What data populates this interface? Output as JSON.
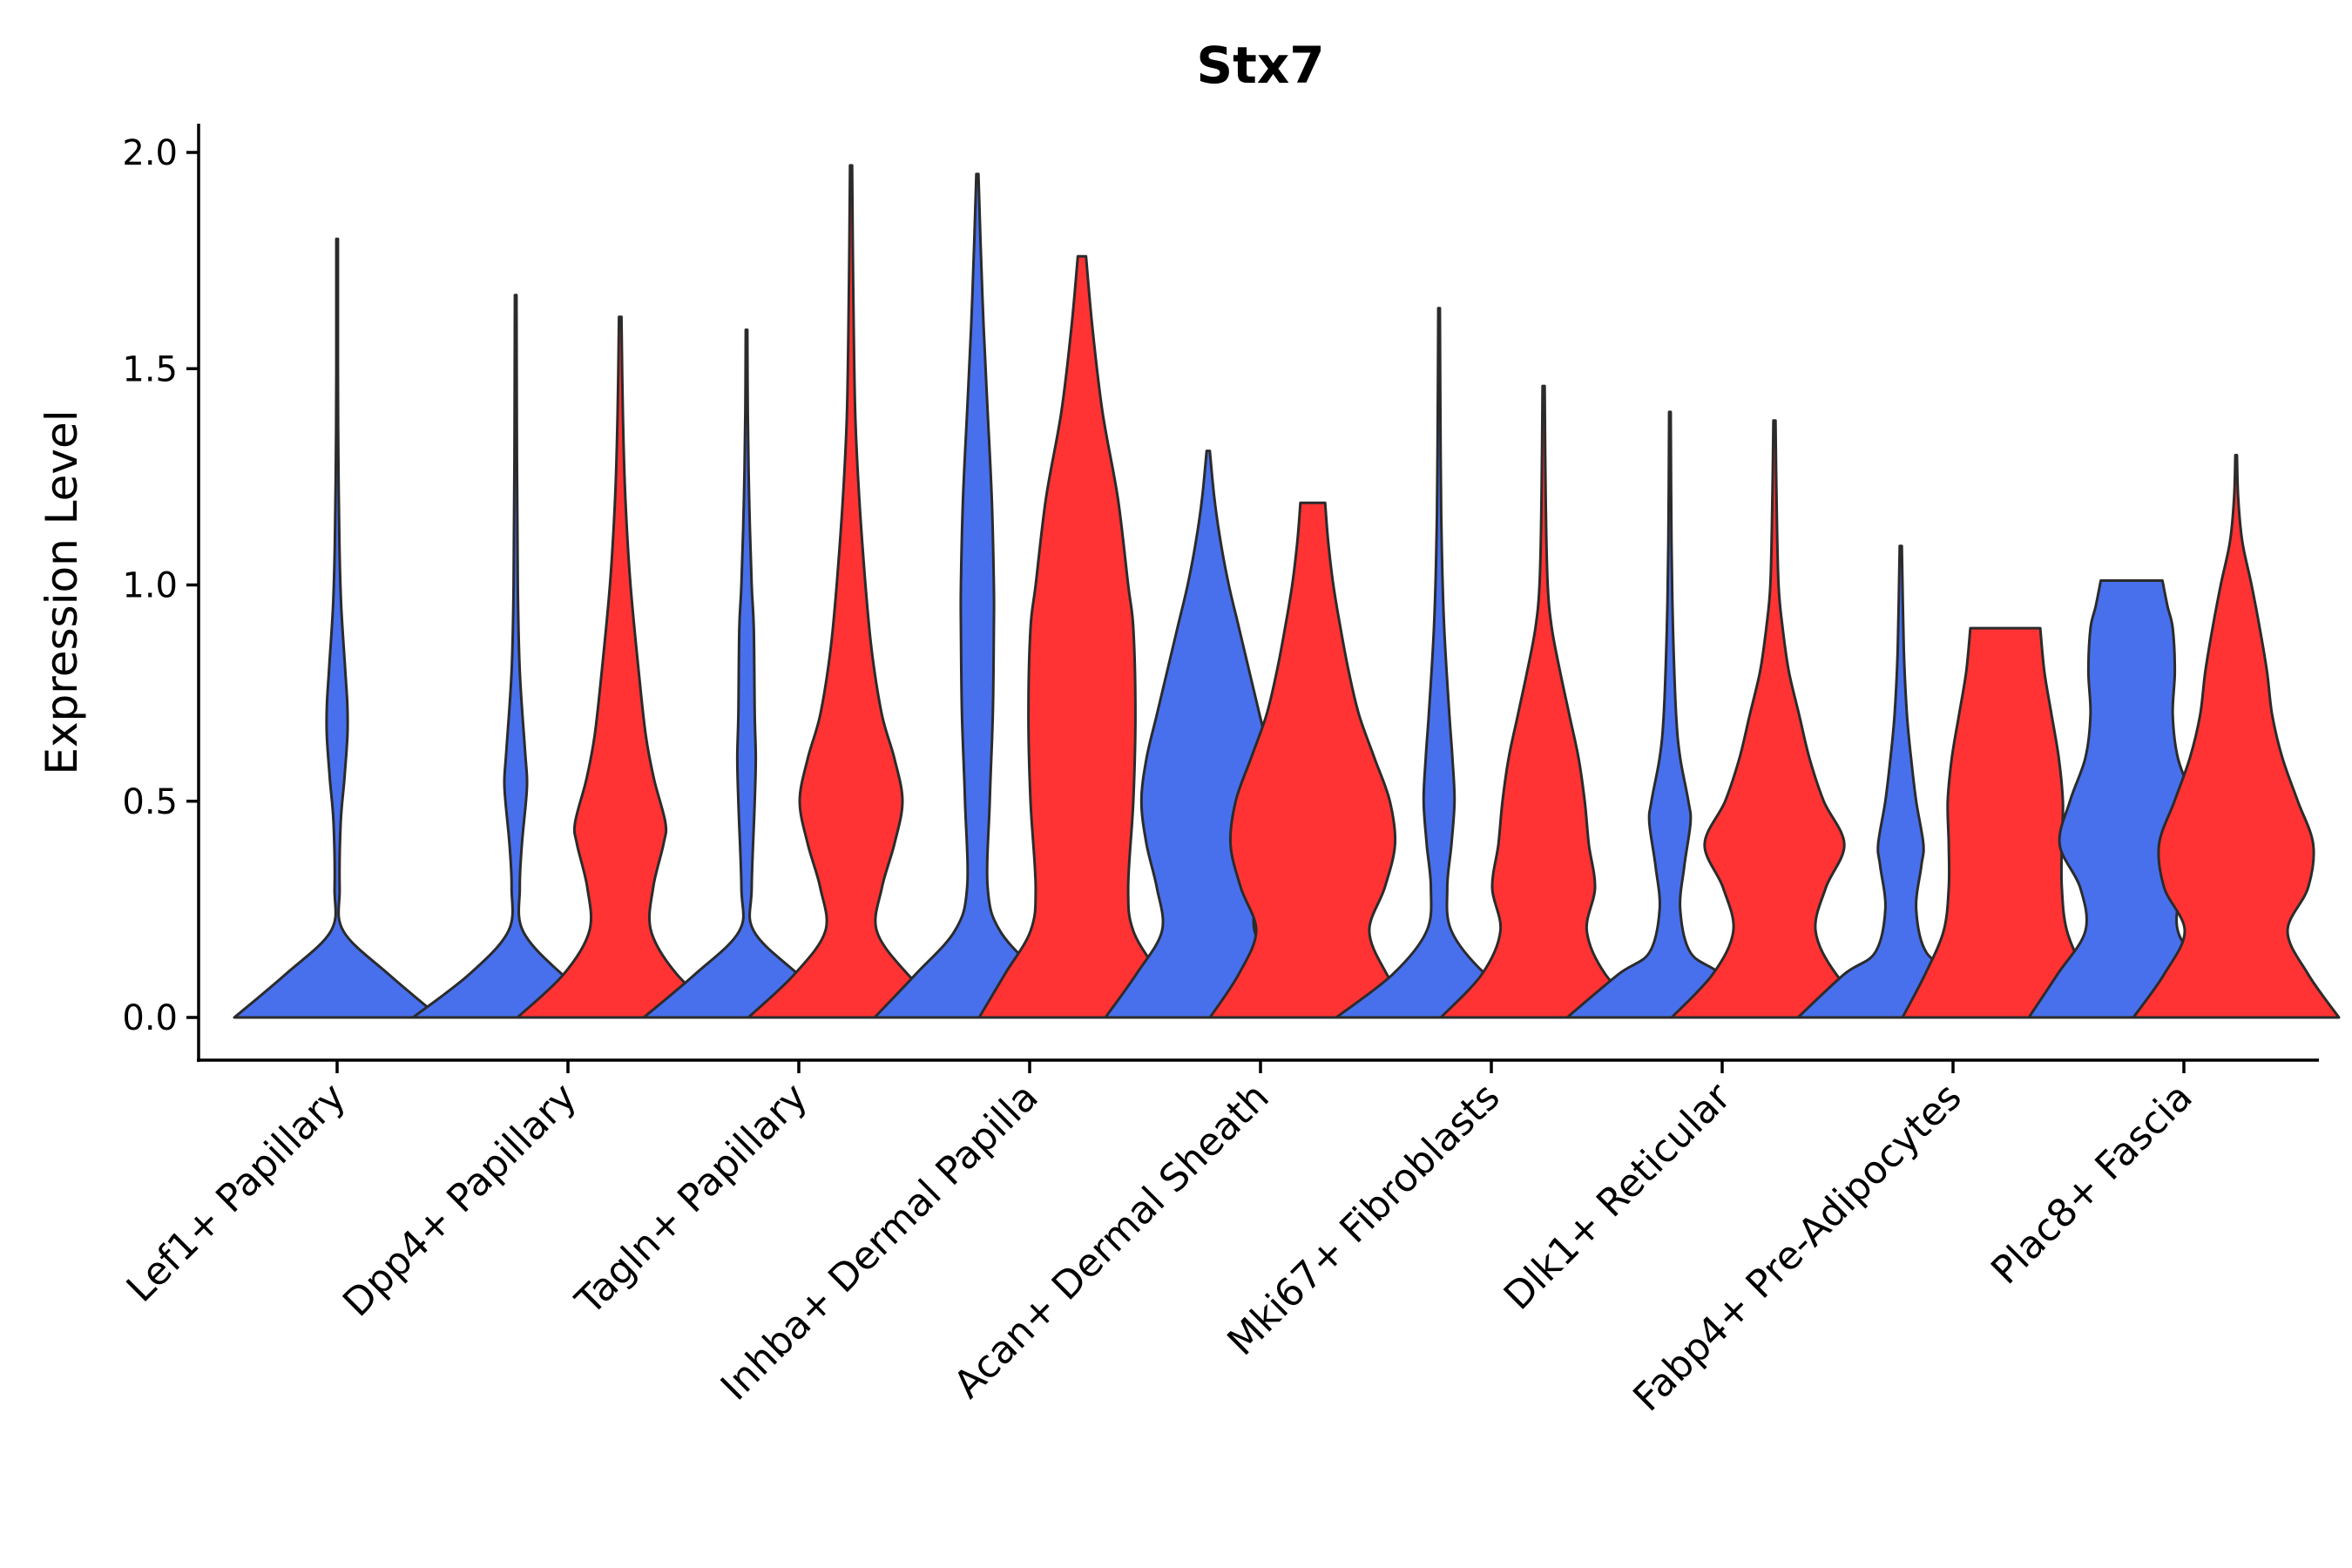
{
  "chart_data": {
    "type": "violin",
    "title": "Stx7",
    "xlabel": "",
    "ylabel": "Expression Level",
    "ylim": [
      -0.1,
      2.07
    ],
    "yticks": [
      "0.0",
      "0.5",
      "1.0",
      "1.5",
      "2.0"
    ],
    "series_colors": [
      "#4870ed",
      "#ff3333"
    ],
    "categories": [
      "Lef1+ Papillary",
      "Dpp4+ Papillary",
      "Tagln+ Papillary",
      "Inhba+ Dermal Papilla",
      "Acan+ Dermal Sheath",
      "Mki67+ Fibroblasts",
      "Dlk1+ Reticular",
      "Fabp4+ Pre-Adipocytes",
      "Plac8+ Fascia"
    ],
    "violins": [
      {
        "category": "Lef1+ Papillary",
        "group": "blue",
        "color": "#4870ed",
        "max": 1.8,
        "profile": [
          [
            0,
            1.0
          ],
          [
            0.1,
            0.5
          ],
          [
            0.2,
            0.06
          ],
          [
            0.3,
            0.025
          ],
          [
            0.45,
            0.035
          ],
          [
            0.55,
            0.07
          ],
          [
            0.65,
            0.1
          ],
          [
            0.72,
            0.1
          ],
          [
            0.8,
            0.08
          ],
          [
            0.95,
            0.04
          ],
          [
            1.1,
            0.022
          ],
          [
            1.3,
            0.012
          ],
          [
            1.5,
            0.008
          ],
          [
            1.8,
            0.008
          ]
        ]
      },
      {
        "category": "Dpp4+ Papillary",
        "group": "blue",
        "color": "#4870ed",
        "max": 1.67,
        "profile": [
          [
            0,
            1.0
          ],
          [
            0.1,
            0.45
          ],
          [
            0.2,
            0.07
          ],
          [
            0.3,
            0.04
          ],
          [
            0.4,
            0.06
          ],
          [
            0.5,
            0.1
          ],
          [
            0.55,
            0.11
          ],
          [
            0.62,
            0.09
          ],
          [
            0.8,
            0.04
          ],
          [
            1.0,
            0.02
          ],
          [
            1.3,
            0.012
          ],
          [
            1.67,
            0.008
          ]
        ]
      },
      {
        "category": "Dpp4+ Papillary",
        "group": "red",
        "color": "#ff3333",
        "max": 1.62,
        "profile": [
          [
            0,
            1.0
          ],
          [
            0.1,
            0.55
          ],
          [
            0.2,
            0.3
          ],
          [
            0.3,
            0.32
          ],
          [
            0.4,
            0.42
          ],
          [
            0.45,
            0.44
          ],
          [
            0.55,
            0.33
          ],
          [
            0.65,
            0.25
          ],
          [
            0.8,
            0.18
          ],
          [
            1.0,
            0.1
          ],
          [
            1.2,
            0.05
          ],
          [
            1.4,
            0.025
          ],
          [
            1.62,
            0.012
          ]
        ]
      },
      {
        "category": "Tagln+ Papillary",
        "group": "blue",
        "color": "#4870ed",
        "max": 1.59,
        "profile": [
          [
            0,
            1.0
          ],
          [
            0.1,
            0.5
          ],
          [
            0.2,
            0.07
          ],
          [
            0.3,
            0.05
          ],
          [
            0.5,
            0.08
          ],
          [
            0.6,
            0.09
          ],
          [
            0.7,
            0.08
          ],
          [
            0.9,
            0.07
          ],
          [
            1.0,
            0.05
          ],
          [
            1.2,
            0.025
          ],
          [
            1.4,
            0.012
          ],
          [
            1.59,
            0.008
          ]
        ]
      },
      {
        "category": "Tagln+ Papillary",
        "group": "red",
        "color": "#ff3333",
        "max": 1.97,
        "profile": [
          [
            0,
            1.0
          ],
          [
            0.1,
            0.55
          ],
          [
            0.2,
            0.25
          ],
          [
            0.3,
            0.3
          ],
          [
            0.4,
            0.42
          ],
          [
            0.5,
            0.5
          ],
          [
            0.6,
            0.42
          ],
          [
            0.7,
            0.3
          ],
          [
            0.85,
            0.2
          ],
          [
            1.0,
            0.14
          ],
          [
            1.2,
            0.08
          ],
          [
            1.4,
            0.04
          ],
          [
            1.7,
            0.02
          ],
          [
            1.97,
            0.01
          ]
        ]
      },
      {
        "category": "Inhba+ Dermal Papilla",
        "group": "blue",
        "color": "#4870ed",
        "max": 1.95,
        "profile": [
          [
            0,
            1.0
          ],
          [
            0.1,
            0.6
          ],
          [
            0.2,
            0.22
          ],
          [
            0.3,
            0.1
          ],
          [
            0.5,
            0.12
          ],
          [
            0.7,
            0.15
          ],
          [
            0.9,
            0.16
          ],
          [
            1.0,
            0.16
          ],
          [
            1.2,
            0.14
          ],
          [
            1.4,
            0.1
          ],
          [
            1.6,
            0.06
          ],
          [
            1.8,
            0.03
          ],
          [
            1.95,
            0.01
          ]
        ]
      },
      {
        "category": "Inhba+ Dermal Papilla",
        "group": "red",
        "color": "#ff3333",
        "max": 1.76,
        "profile": [
          [
            0,
            1.0
          ],
          [
            0.1,
            0.75
          ],
          [
            0.2,
            0.5
          ],
          [
            0.3,
            0.45
          ],
          [
            0.5,
            0.5
          ],
          [
            0.7,
            0.52
          ],
          [
            0.9,
            0.5
          ],
          [
            1.0,
            0.45
          ],
          [
            1.2,
            0.35
          ],
          [
            1.4,
            0.2
          ],
          [
            1.6,
            0.1
          ],
          [
            1.76,
            0.04
          ]
        ]
      },
      {
        "category": "Acan+ Dermal Sheath",
        "group": "blue",
        "color": "#4870ed",
        "max": 1.31,
        "profile": [
          [
            0,
            1.0
          ],
          [
            0.1,
            0.7
          ],
          [
            0.2,
            0.45
          ],
          [
            0.3,
            0.5
          ],
          [
            0.4,
            0.6
          ],
          [
            0.5,
            0.65
          ],
          [
            0.6,
            0.6
          ],
          [
            0.7,
            0.5
          ],
          [
            0.8,
            0.4
          ],
          [
            0.9,
            0.3
          ],
          [
            1.0,
            0.2
          ],
          [
            1.1,
            0.12
          ],
          [
            1.2,
            0.06
          ],
          [
            1.31,
            0.015
          ]
        ]
      },
      {
        "category": "Acan+ Dermal Sheath",
        "group": "red",
        "color": "#ff3333",
        "max": 1.19,
        "profile": [
          [
            0,
            1.0
          ],
          [
            0.1,
            0.72
          ],
          [
            0.2,
            0.55
          ],
          [
            0.3,
            0.7
          ],
          [
            0.4,
            0.8
          ],
          [
            0.5,
            0.75
          ],
          [
            0.6,
            0.6
          ],
          [
            0.7,
            0.45
          ],
          [
            0.8,
            0.35
          ],
          [
            0.9,
            0.27
          ],
          [
            1.0,
            0.2
          ],
          [
            1.1,
            0.15
          ],
          [
            1.19,
            0.12
          ]
        ]
      },
      {
        "category": "Mki67+ Fibroblasts",
        "group": "blue",
        "color": "#4870ed",
        "max": 1.64,
        "profile": [
          [
            0,
            1.0
          ],
          [
            0.1,
            0.45
          ],
          [
            0.2,
            0.12
          ],
          [
            0.3,
            0.08
          ],
          [
            0.4,
            0.12
          ],
          [
            0.5,
            0.15
          ],
          [
            0.6,
            0.13
          ],
          [
            0.7,
            0.1
          ],
          [
            0.9,
            0.05
          ],
          [
            1.1,
            0.025
          ],
          [
            1.3,
            0.015
          ],
          [
            1.64,
            0.008
          ]
        ]
      },
      {
        "category": "Mki67+ Fibroblasts",
        "group": "red",
        "color": "#ff3333",
        "max": 1.46,
        "profile": [
          [
            0,
            1.0
          ],
          [
            0.1,
            0.6
          ],
          [
            0.2,
            0.42
          ],
          [
            0.3,
            0.5
          ],
          [
            0.4,
            0.44
          ],
          [
            0.5,
            0.4
          ],
          [
            0.6,
            0.34
          ],
          [
            0.7,
            0.25
          ],
          [
            0.8,
            0.16
          ],
          [
            0.9,
            0.08
          ],
          [
            1.0,
            0.04
          ],
          [
            1.2,
            0.02
          ],
          [
            1.46,
            0.01
          ]
        ]
      },
      {
        "category": "Dlk1+ Reticular",
        "group": "blue",
        "color": "#4870ed",
        "max": 1.4,
        "profile": [
          [
            0,
            1.0
          ],
          [
            0.1,
            0.5
          ],
          [
            0.15,
            0.2
          ],
          [
            0.25,
            0.1
          ],
          [
            0.35,
            0.14
          ],
          [
            0.45,
            0.2
          ],
          [
            0.5,
            0.18
          ],
          [
            0.6,
            0.1
          ],
          [
            0.7,
            0.06
          ],
          [
            0.9,
            0.03
          ],
          [
            1.1,
            0.015
          ],
          [
            1.4,
            0.008
          ]
        ]
      },
      {
        "category": "Dlk1+ Reticular",
        "group": "red",
        "color": "#ff3333",
        "max": 1.38,
        "profile": [
          [
            0,
            1.0
          ],
          [
            0.1,
            0.6
          ],
          [
            0.2,
            0.4
          ],
          [
            0.3,
            0.5
          ],
          [
            0.4,
            0.68
          ],
          [
            0.5,
            0.48
          ],
          [
            0.6,
            0.34
          ],
          [
            0.7,
            0.24
          ],
          [
            0.8,
            0.14
          ],
          [
            0.9,
            0.08
          ],
          [
            1.0,
            0.04
          ],
          [
            1.2,
            0.02
          ],
          [
            1.38,
            0.01
          ]
        ]
      },
      {
        "category": "Fabp4+ Pre-Adipocytes",
        "group": "blue",
        "color": "#4870ed",
        "max": 1.09,
        "profile": [
          [
            0,
            1.0
          ],
          [
            0.1,
            0.55
          ],
          [
            0.15,
            0.25
          ],
          [
            0.25,
            0.15
          ],
          [
            0.35,
            0.2
          ],
          [
            0.4,
            0.22
          ],
          [
            0.5,
            0.15
          ],
          [
            0.6,
            0.1
          ],
          [
            0.7,
            0.06
          ],
          [
            0.85,
            0.03
          ],
          [
            1.09,
            0.01
          ]
        ]
      },
      {
        "category": "Fabp4+ Pre-Adipocytes",
        "group": "red",
        "color": "#ff3333",
        "max": 0.9,
        "profile": [
          [
            0,
            1.0
          ],
          [
            0.1,
            0.78
          ],
          [
            0.2,
            0.6
          ],
          [
            0.3,
            0.55
          ],
          [
            0.4,
            0.55
          ],
          [
            0.5,
            0.56
          ],
          [
            0.6,
            0.52
          ],
          [
            0.7,
            0.45
          ],
          [
            0.8,
            0.38
          ],
          [
            0.9,
            0.34
          ]
        ]
      },
      {
        "category": "Plac8+ Fascia",
        "group": "blue",
        "color": "#4870ed",
        "max": 1.01,
        "profile": [
          [
            0,
            1.0
          ],
          [
            0.1,
            0.72
          ],
          [
            0.2,
            0.45
          ],
          [
            0.3,
            0.5
          ],
          [
            0.4,
            0.7
          ],
          [
            0.5,
            0.6
          ],
          [
            0.6,
            0.45
          ],
          [
            0.7,
            0.4
          ],
          [
            0.8,
            0.42
          ],
          [
            0.9,
            0.4
          ],
          [
            0.95,
            0.35
          ],
          [
            1.01,
            0.3
          ]
        ]
      },
      {
        "category": "Plac8+ Fascia",
        "group": "red",
        "color": "#ff3333",
        "max": 1.3,
        "profile": [
          [
            0,
            1.0
          ],
          [
            0.1,
            0.7
          ],
          [
            0.2,
            0.5
          ],
          [
            0.3,
            0.7
          ],
          [
            0.4,
            0.75
          ],
          [
            0.5,
            0.6
          ],
          [
            0.6,
            0.45
          ],
          [
            0.7,
            0.35
          ],
          [
            0.8,
            0.3
          ],
          [
            0.9,
            0.23
          ],
          [
            1.0,
            0.15
          ],
          [
            1.1,
            0.06
          ],
          [
            1.2,
            0.02
          ],
          [
            1.3,
            0.008
          ]
        ]
      }
    ]
  }
}
